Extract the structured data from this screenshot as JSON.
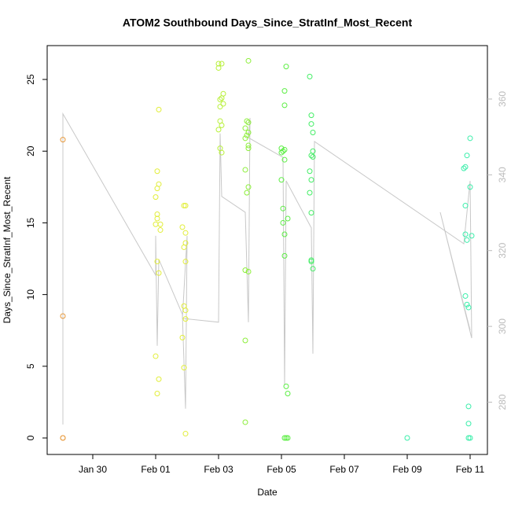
{
  "chart_data": {
    "type": "scatter",
    "title": "ATOM2 Southbound Days_Since_StratInf_Most_Recent",
    "x_label": "Date",
    "y_label": "Days_Since_StratInf_Most_Recent",
    "xlim": [
      28.55,
      42.55
    ],
    "xticks": [
      {
        "value": 30,
        "label": "Jan 30"
      },
      {
        "value": 32,
        "label": "Feb 01"
      },
      {
        "value": 34,
        "label": "Feb 03"
      },
      {
        "value": 36,
        "label": "Feb 05"
      },
      {
        "value": 38,
        "label": "Feb 07"
      },
      {
        "value": 40,
        "label": "Feb 09"
      },
      {
        "value": 42,
        "label": "Feb 11"
      }
    ],
    "ylim": [
      -1.15,
      27.36
    ],
    "yticks": [
      0,
      5,
      10,
      15,
      20,
      25
    ],
    "y2lim": [
      266.2,
      374.1
    ],
    "y2ticks": [
      280,
      300,
      320,
      340,
      360
    ],
    "series": [
      {
        "color": "#e89a3c",
        "x": [
          29.05,
          29.05,
          29.05,
          29.05
        ],
        "values": [
          20.8,
          8.5,
          0,
          0
        ]
      },
      {
        "color": "#e2ee3a",
        "x": [
          32.1,
          32.05,
          32.1,
          32.05,
          32.0,
          32.05,
          32.05,
          32.0,
          32.15,
          32.15,
          32.05,
          32.1,
          32.0,
          32.1,
          32.05,
          32.9,
          32.95,
          32.85,
          32.95,
          32.95,
          32.9,
          32.95,
          32.9,
          32.95,
          32.95,
          32.85,
          32.9,
          32.95
        ],
        "values": [
          22.9,
          18.6,
          17.7,
          17.4,
          16.8,
          15.6,
          15.3,
          14.9,
          14.9,
          14.5,
          12.3,
          11.5,
          5.7,
          4.1,
          3.1,
          16.2,
          16.2,
          14.7,
          14.3,
          13.6,
          13.3,
          12.3,
          9.2,
          8.9,
          8.3,
          7.0,
          4.9,
          0.3
        ]
      },
      {
        "color": "#b8f03a",
        "x": [
          34.0,
          34.1,
          34.0,
          34.15,
          34.1,
          34.05,
          34.15,
          34.05,
          34.05,
          34.1,
          34.0,
          34.05,
          34.1
        ],
        "values": [
          26.1,
          26.1,
          25.8,
          24.0,
          23.7,
          23.6,
          23.3,
          23.1,
          22.1,
          21.8,
          21.5,
          20.2,
          19.9
        ]
      },
      {
        "color": "#8cee3a",
        "x": [
          34.95,
          34.9,
          34.95,
          34.85,
          34.95,
          34.9,
          34.85,
          34.95,
          34.95,
          34.85,
          34.95,
          34.9,
          34.85,
          34.95,
          34.85,
          34.85
        ],
        "values": [
          26.3,
          22.1,
          22.0,
          21.6,
          21.3,
          21.1,
          20.9,
          20.4,
          20.2,
          18.7,
          17.5,
          17.1,
          11.7,
          11.6,
          6.8,
          1.1
        ]
      },
      {
        "color": "#5cee44",
        "x": [
          36.15,
          36.1,
          36.1,
          36.0,
          36.1,
          36.05,
          36.0,
          36.1,
          36.0,
          36.05,
          36.2,
          36.05,
          36.1,
          36.1,
          36.15,
          36.2,
          36.1,
          36.15,
          36.2
        ],
        "values": [
          25.9,
          24.2,
          23.2,
          20.2,
          20.1,
          20.0,
          19.9,
          19.4,
          18.0,
          16.0,
          15.3,
          15.0,
          14.2,
          12.7,
          3.6,
          3.1,
          0,
          0,
          0
        ]
      },
      {
        "color": "#44ee66",
        "x": [
          36.9,
          36.95,
          36.95,
          37.0,
          37.0,
          36.95,
          37.0,
          36.9,
          36.95,
          36.9,
          36.95,
          36.95,
          36.95,
          37.0
        ],
        "values": [
          25.2,
          22.5,
          21.9,
          21.3,
          20.0,
          19.7,
          19.6,
          18.6,
          18.0,
          17.1,
          15.7,
          12.4,
          12.3,
          11.8
        ]
      },
      {
        "color": "#3aeeaa",
        "x": [
          40.0,
          42.0,
          41.9,
          41.85,
          41.8,
          42.0,
          41.85,
          41.85,
          42.05,
          41.9,
          41.85,
          41.9,
          41.95,
          41.95,
          41.95,
          42.0,
          41.95
        ],
        "values": [
          0,
          20.9,
          19.7,
          18.9,
          18.8,
          17.5,
          16.2,
          14.2,
          14.1,
          13.8,
          9.9,
          9.3,
          9.1,
          2.2,
          1.0,
          0,
          0
        ]
      },
      {
        "color": "#c8c8c8",
        "axis": "y2",
        "line": true,
        "x": [
          29.05,
          29.05,
          32.0,
          32.0,
          32.05,
          32.1,
          32.85,
          32.95,
          33.0,
          32.85,
          34.0,
          34.05,
          34.1,
          34.85,
          34.95,
          35.0,
          34.95,
          36.05,
          36.1,
          36.15,
          36.95,
          37.0,
          37.05,
          41.8,
          42.0,
          42.05,
          41.05,
          42.0
        ],
        "values": [
          274.1,
          356.1,
          313.5,
          323.9,
          294.9,
          317.7,
          303.2,
          278.3,
          323.9,
          302.1,
          301.1,
          350.9,
          334.3,
          330.1,
          301.1,
          355.0,
          349.8,
          344.6,
          284.5,
          338.4,
          326.0,
          292.8,
          348.8,
          321.8,
          338.4,
          296.9,
          330.1,
          299.0
        ]
      }
    ]
  }
}
